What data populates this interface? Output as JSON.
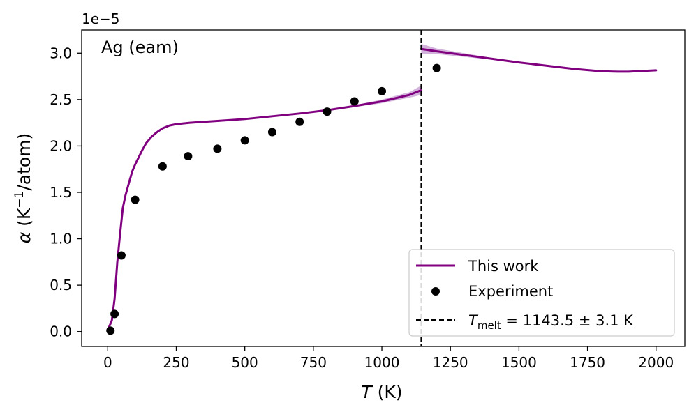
{
  "chart_data": {
    "type": "line",
    "annotation": "Ag (eam)",
    "offset_text": "1e−5",
    "xlabel": {
      "symbol": "T",
      "unit": " (K)"
    },
    "ylabel": {
      "symbol": "α",
      "prefix": " (K",
      "sup": "−1",
      "suffix": "/atom)"
    },
    "xlim": [
      -95,
      2105
    ],
    "ylim": [
      -0.16,
      3.25
    ],
    "xticks": [
      0,
      250,
      500,
      750,
      1000,
      1250,
      1500,
      1750,
      2000
    ],
    "yticks": [
      0.0,
      0.5,
      1.0,
      1.5,
      2.0,
      2.5,
      3.0
    ],
    "xtick_labels": [
      "0",
      "250",
      "500",
      "750",
      "1000",
      "1250",
      "1500",
      "1750",
      "2000"
    ],
    "ytick_labels": [
      "0.0",
      "0.5",
      "1.0",
      "1.5",
      "2.0",
      "2.5",
      "3.0"
    ],
    "melt_line": {
      "x": 1143.5
    },
    "colors": {
      "this_work": "#800080",
      "band": "#c8a0d2",
      "experiment": "#000000",
      "melt": "#000000"
    },
    "series": [
      {
        "name": "This work",
        "kind": "line",
        "segments": [
          [
            [
              5,
              0.05
            ],
            [
              15,
              0.12
            ],
            [
              25,
              0.35
            ],
            [
              35,
              0.75
            ],
            [
              45,
              1.05
            ],
            [
              55,
              1.33
            ],
            [
              65,
              1.47
            ],
            [
              80,
              1.63
            ],
            [
              90,
              1.73
            ],
            [
              100,
              1.8
            ],
            [
              110,
              1.86
            ],
            [
              125,
              1.95
            ],
            [
              140,
              2.03
            ],
            [
              160,
              2.1
            ],
            [
              180,
              2.15
            ],
            [
              200,
              2.19
            ],
            [
              225,
              2.22
            ],
            [
              250,
              2.235
            ],
            [
              300,
              2.25
            ],
            [
              400,
              2.27
            ],
            [
              500,
              2.29
            ],
            [
              600,
              2.32
            ],
            [
              700,
              2.35
            ],
            [
              800,
              2.385
            ],
            [
              900,
              2.43
            ],
            [
              1000,
              2.48
            ],
            [
              1050,
              2.515
            ],
            [
              1100,
              2.55
            ],
            [
              1143,
              2.6
            ]
          ],
          [
            [
              1143.5,
              3.045
            ],
            [
              1200,
              3.02
            ],
            [
              1300,
              2.98
            ],
            [
              1400,
              2.94
            ],
            [
              1500,
              2.9
            ],
            [
              1600,
              2.865
            ],
            [
              1700,
              2.83
            ],
            [
              1800,
              2.805
            ],
            [
              1860,
              2.8
            ],
            [
              1900,
              2.8
            ],
            [
              2000,
              2.815
            ]
          ]
        ],
        "band_segments": [
          {
            "upper": [
              [
                800,
                2.39
              ],
              [
                900,
                2.44
              ],
              [
                1000,
                2.5
              ],
              [
                1050,
                2.54
              ],
              [
                1100,
                2.58
              ],
              [
                1143,
                2.65
              ]
            ],
            "lower": [
              [
                800,
                2.38
              ],
              [
                900,
                2.42
              ],
              [
                1000,
                2.46
              ],
              [
                1050,
                2.49
              ],
              [
                1100,
                2.52
              ],
              [
                1143,
                2.55
              ]
            ]
          },
          {
            "upper": [
              [
                1143.5,
                3.1
              ],
              [
                1200,
                3.05
              ],
              [
                1300,
                3.0
              ],
              [
                1400,
                2.95
              ],
              [
                1500,
                2.91
              ],
              [
                1600,
                2.87
              ],
              [
                1700,
                2.835
              ],
              [
                1800,
                2.81
              ],
              [
                1860,
                2.805
              ],
              [
                1900,
                2.805
              ],
              [
                2000,
                2.82
              ]
            ],
            "lower": [
              [
                1143.5,
                2.99
              ],
              [
                1200,
                2.99
              ],
              [
                1300,
                2.96
              ],
              [
                1400,
                2.93
              ],
              [
                1500,
                2.89
              ],
              [
                1600,
                2.86
              ],
              [
                1700,
                2.825
              ],
              [
                1800,
                2.8
              ],
              [
                1860,
                2.795
              ],
              [
                1900,
                2.795
              ],
              [
                2000,
                2.81
              ]
            ]
          }
        ]
      },
      {
        "name": "Experiment",
        "kind": "scatter",
        "x": [
          10,
          25,
          50,
          100,
          200,
          293,
          400,
          500,
          600,
          700,
          800,
          900,
          1000,
          1200
        ],
        "y": [
          0.01,
          0.19,
          0.82,
          1.42,
          1.78,
          1.89,
          1.97,
          2.06,
          2.15,
          2.26,
          2.37,
          2.48,
          2.59,
          2.84
        ]
      }
    ],
    "legend": {
      "position": "lower right",
      "entries": [
        {
          "label": "This work"
        },
        {
          "label": "Experiment"
        },
        {
          "label_symbol": "T",
          "label_sub": "melt",
          "label_value": " = 1143.5 ± 3.1 K"
        }
      ]
    }
  }
}
